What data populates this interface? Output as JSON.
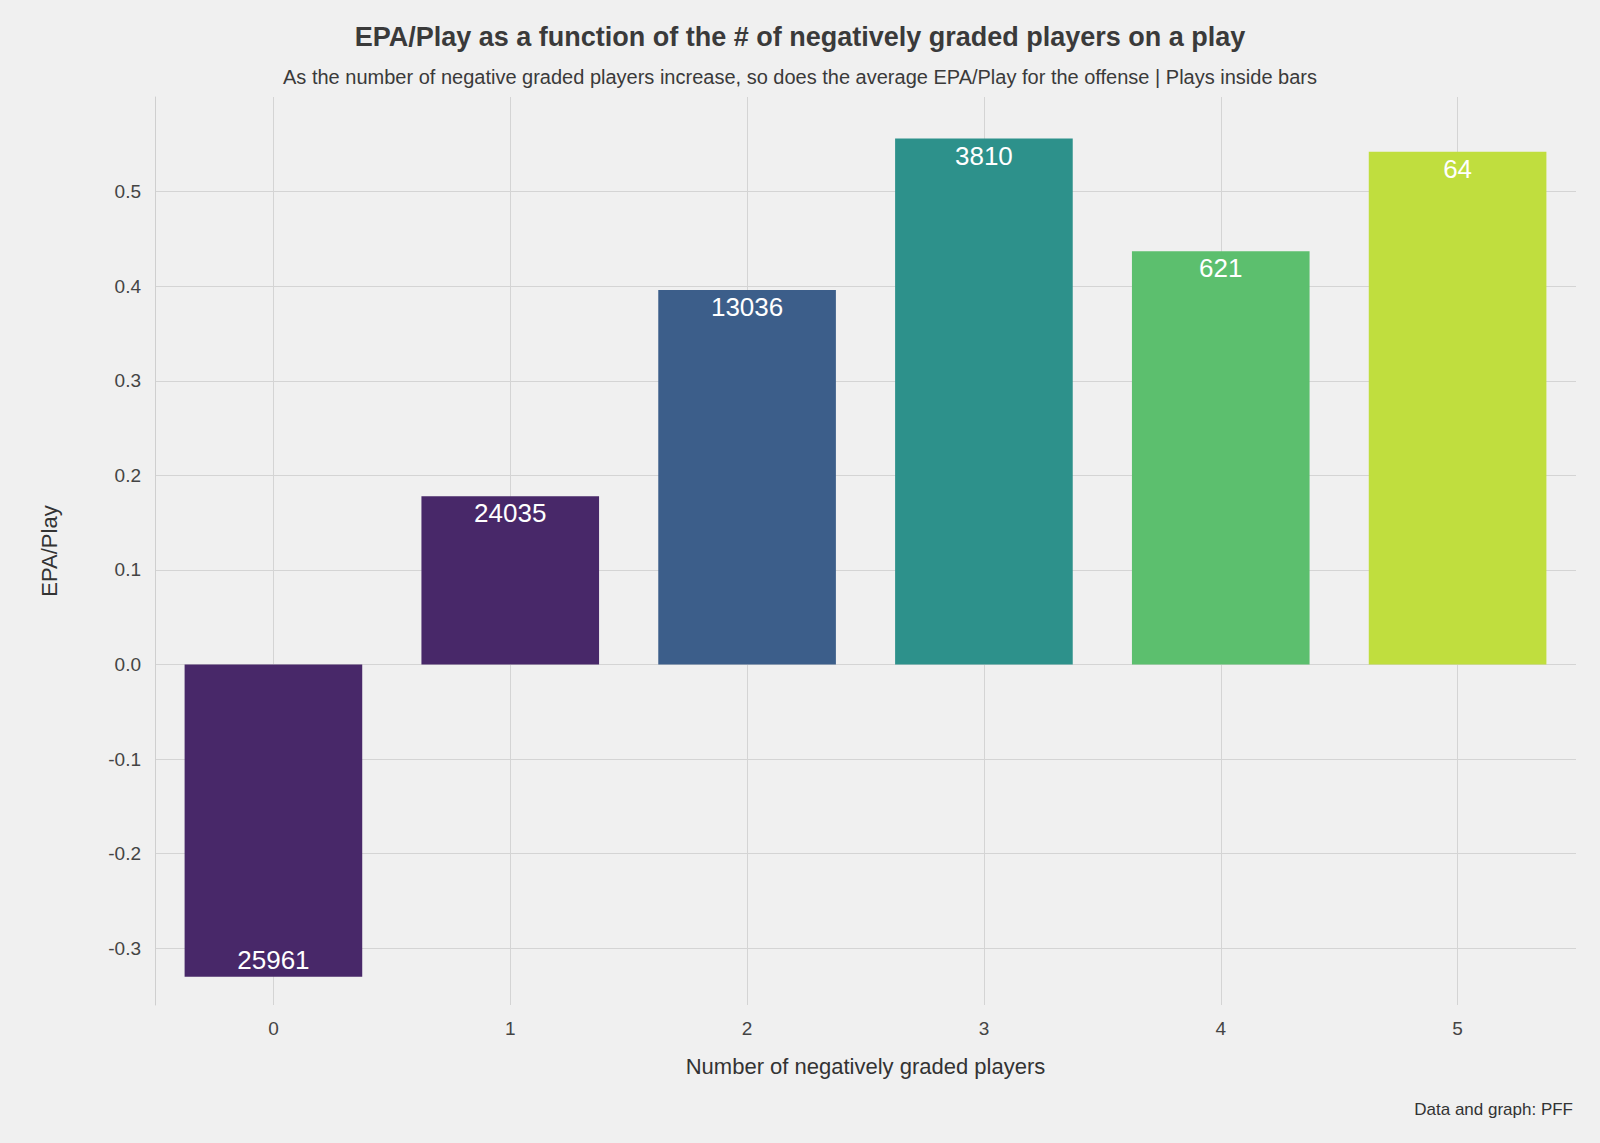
{
  "chart_data": {
    "type": "bar",
    "title": "EPA/Play as a function of the # of negatively graded players on a play",
    "subtitle": "As the number of negative graded players increase, so does the average EPA/Play for the offense | Plays inside bars",
    "x_label": "Number of negatively graded players",
    "y_label": "EPA/Play",
    "caption": "Data and graph: PFF",
    "categories": [
      "0",
      "1",
      "2",
      "3",
      "4",
      "5"
    ],
    "values": [
      -0.33,
      0.178,
      0.396,
      0.556,
      0.437,
      0.542
    ],
    "plays": [
      25961,
      24035,
      13036,
      3810,
      621,
      64
    ],
    "colors": [
      "#482869",
      "#482869",
      "#3c5e8a",
      "#2d918b",
      "#5cbf6e",
      "#c0de3e"
    ],
    "ylim": [
      -0.36,
      0.6
    ],
    "yticks": [
      -0.3,
      -0.2,
      -0.1,
      {
        "value": 0,
        "label": "0.0"
      },
      0.1,
      0.2,
      0.3,
      0.4,
      0.5
    ],
    "grid": true
  }
}
